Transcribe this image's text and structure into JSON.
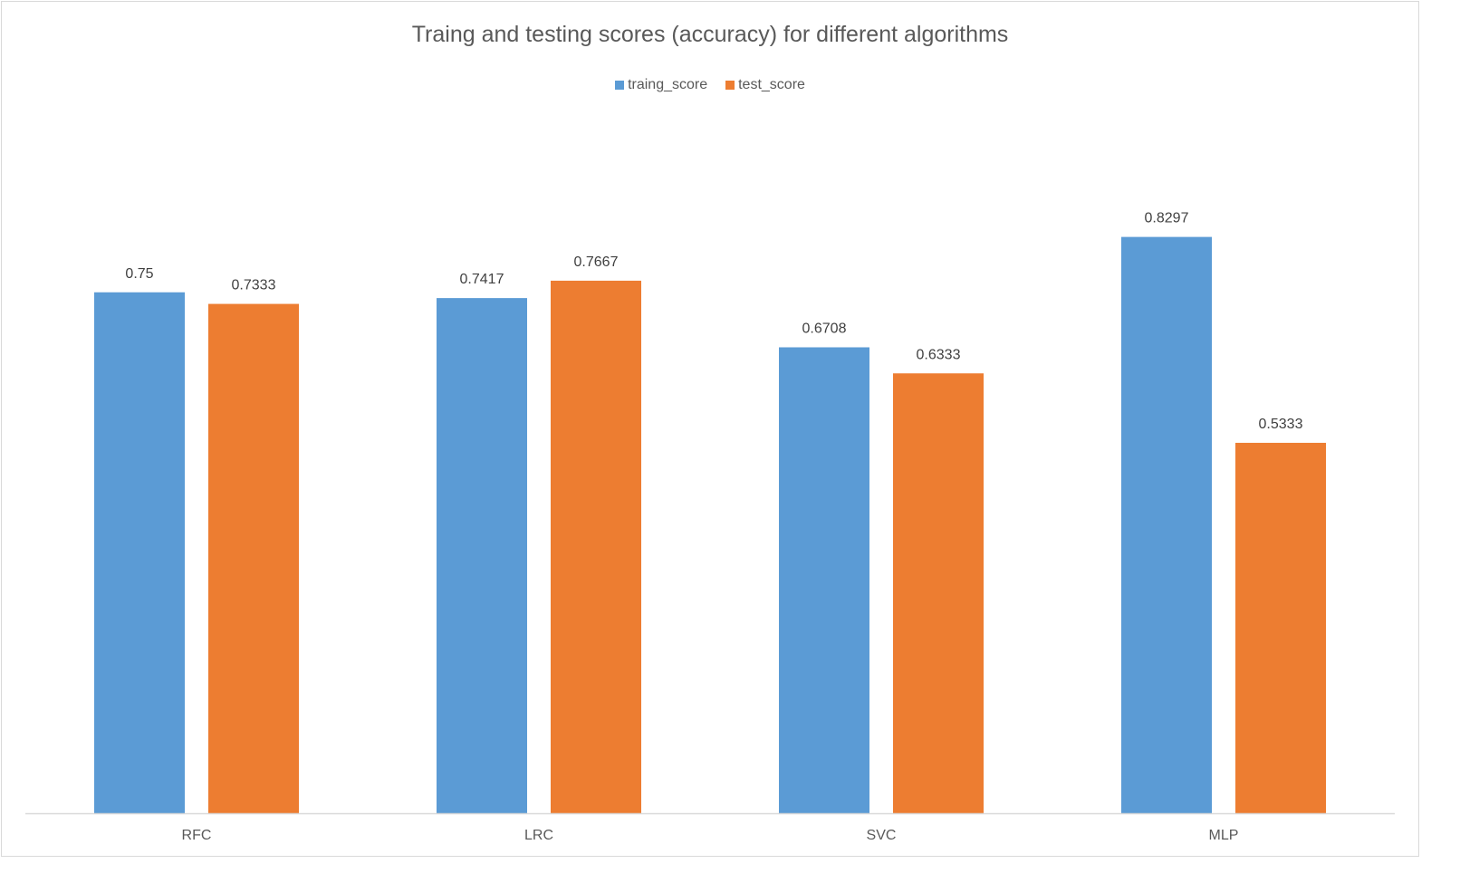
{
  "chart_data": {
    "type": "bar",
    "title": "Traing and testing scores (accuracy) for different algorithms",
    "categories": [
      "RFC",
      "LRC",
      "SVC",
      "MLP"
    ],
    "series": [
      {
        "name": "traing_score",
        "color": "#5b9bd5",
        "values": [
          0.75,
          0.7417,
          0.6708,
          0.8297
        ],
        "labels": [
          "0.75",
          "0.7417",
          "0.6708",
          "0.8297"
        ]
      },
      {
        "name": "test_score",
        "color": "#ed7d31",
        "values": [
          0.7333,
          0.7667,
          0.6333,
          0.5333
        ],
        "labels": [
          "0.7333",
          "0.7667",
          "0.6333",
          "0.5333"
        ]
      }
    ],
    "xlabel": "",
    "ylabel": "",
    "ylim": [
      0,
      0.9
    ],
    "grid": false,
    "legend": "top"
  }
}
